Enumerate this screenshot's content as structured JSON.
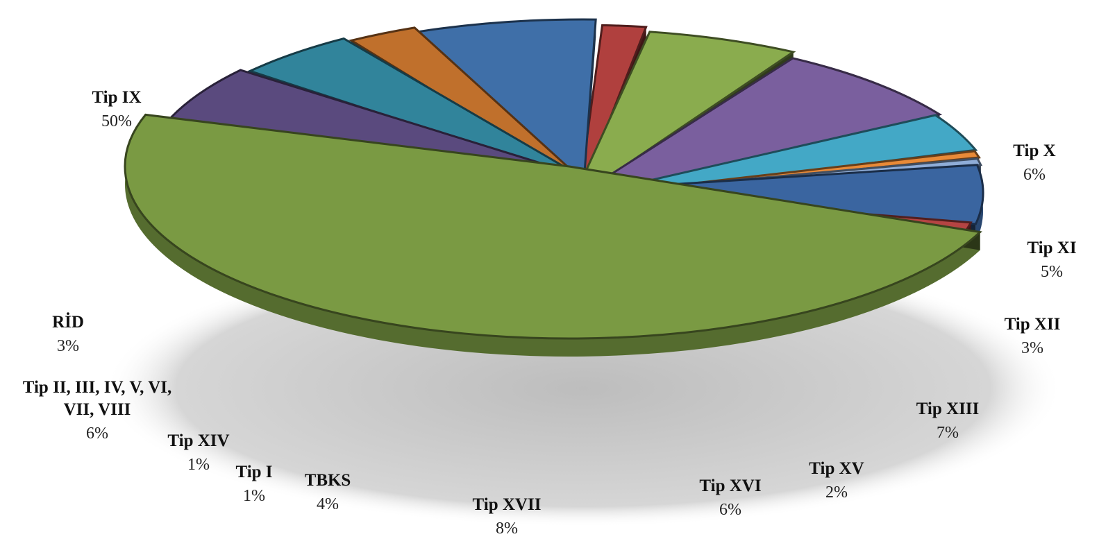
{
  "chart_data": {
    "type": "pie",
    "title": "",
    "slices": [
      {
        "label": "Tip IX",
        "value": 50,
        "pct_text": "50%",
        "color": "#7a9a43"
      },
      {
        "label": "Tip X",
        "value": 6,
        "pct_text": "6%",
        "color": "#5a4a7e"
      },
      {
        "label": "Tip XI",
        "value": 5,
        "pct_text": "5%",
        "color": "#31849b"
      },
      {
        "label": "Tip XII",
        "value": 3,
        "pct_text": "3%",
        "color": "#c0702c"
      },
      {
        "label": "Tip XIII",
        "value": 7,
        "pct_text": "7%",
        "color": "#3f6fa8"
      },
      {
        "label": "Tip XV",
        "value": 2,
        "pct_text": "2%",
        "color": "#b0403e"
      },
      {
        "label": "Tip XVI",
        "value": 6,
        "pct_text": "6%",
        "color": "#8aac4e"
      },
      {
        "label": "Tip XVII",
        "value": 8,
        "pct_text": "8%",
        "color": "#7a5f9e"
      },
      {
        "label": "TBKS",
        "value": 4,
        "pct_text": "4%",
        "color": "#43a8c6"
      },
      {
        "label": "Tip I",
        "value": 1,
        "pct_text": "1%",
        "color": "#e88a38"
      },
      {
        "label": "Tip XIV",
        "value": 1,
        "pct_text": "1%",
        "color": "#8fadd8"
      },
      {
        "label": "Tip II, III, IV, V, VI,\nVII, VIII",
        "value": 6,
        "pct_text": "6%",
        "color": "#3a65a0"
      },
      {
        "label": "RİD",
        "value": 3,
        "pct_text": "3%",
        "color": "#b54443"
      }
    ]
  }
}
